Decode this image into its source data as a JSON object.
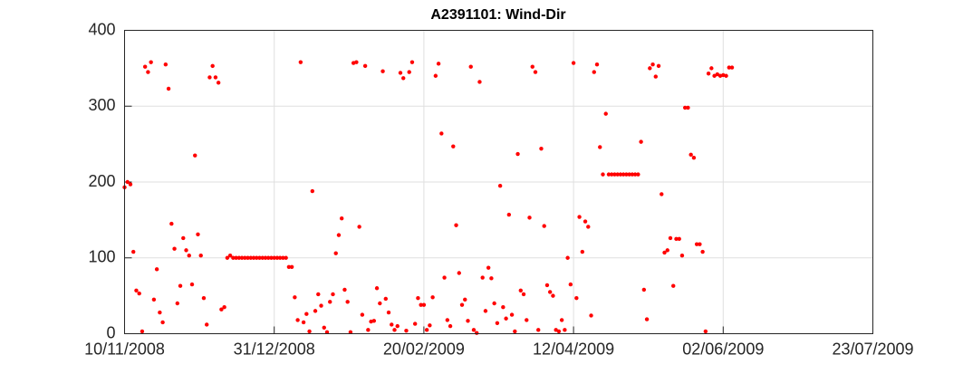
{
  "chart_data": {
    "type": "scatter",
    "title": "A2391101: Wind-Dir",
    "color": "#ff0000",
    "grid": true,
    "xlim": [
      "10/11/2008",
      "23/07/2009"
    ],
    "xticks": [
      "10/11/2008",
      "31/12/2008",
      "20/02/2009",
      "12/04/2009",
      "02/06/2009",
      "23/07/2009"
    ],
    "ylim": [
      0,
      400
    ],
    "yticks": [
      0,
      100,
      200,
      300,
      400
    ],
    "series": [
      {
        "name": "Wind-Dir",
        "color": "#ff0000",
        "x": [
          "10/11/2008",
          "11/11/2008",
          "12/11/2008",
          "13/11/2008",
          "14/11/2008",
          "15/11/2008",
          "16/11/2008",
          "17/11/2008",
          "18/11/2008",
          "19/11/2008",
          "20/11/2008",
          "21/11/2008",
          "22/11/2008",
          "23/11/2008",
          "24/11/2008",
          "25/11/2008",
          "26/11/2008",
          "27/11/2008",
          "28/11/2008",
          "29/11/2008",
          "30/11/2008",
          "01/12/2008",
          "02/12/2008",
          "03/12/2008",
          "04/12/2008",
          "05/12/2008",
          "06/12/2008",
          "07/12/2008",
          "08/12/2008",
          "09/12/2008",
          "10/12/2008",
          "11/12/2008",
          "12/12/2008",
          "13/12/2008",
          "14/12/2008",
          "15/12/2008",
          "16/12/2008",
          "17/12/2008",
          "18/12/2008",
          "19/12/2008",
          "20/12/2008",
          "21/12/2008",
          "22/12/2008",
          "23/12/2008",
          "24/12/2008",
          "25/12/2008",
          "26/12/2008",
          "27/12/2008",
          "28/12/2008",
          "29/12/2008",
          "30/12/2008",
          "31/12/2008",
          "01/01/2009",
          "02/01/2009",
          "03/01/2009",
          "04/01/2009",
          "05/01/2009",
          "06/01/2009",
          "07/01/2009",
          "08/01/2009",
          "09/01/2009",
          "10/01/2009",
          "11/01/2009",
          "12/01/2009",
          "13/01/2009",
          "14/01/2009",
          "15/01/2009",
          "16/01/2009",
          "17/01/2009",
          "18/01/2009",
          "19/01/2009",
          "20/01/2009",
          "21/01/2009",
          "22/01/2009",
          "23/01/2009",
          "24/01/2009",
          "25/01/2009",
          "26/01/2009",
          "27/01/2009",
          "28/01/2009",
          "29/01/2009",
          "30/01/2009",
          "31/01/2009",
          "01/02/2009",
          "02/02/2009",
          "03/02/2009",
          "04/02/2009",
          "05/02/2009",
          "06/02/2009",
          "07/02/2009",
          "08/02/2009",
          "09/02/2009",
          "10/02/2009",
          "11/02/2009",
          "12/02/2009",
          "13/02/2009",
          "14/02/2009",
          "15/02/2009",
          "16/02/2009",
          "17/02/2009",
          "18/02/2009",
          "19/02/2009",
          "20/02/2009",
          "21/02/2009",
          "22/02/2009",
          "23/02/2009",
          "24/02/2009",
          "25/02/2009",
          "26/02/2009",
          "27/02/2009",
          "28/02/2009",
          "01/03/2009",
          "02/03/2009",
          "03/03/2009",
          "04/03/2009",
          "05/03/2009",
          "06/03/2009",
          "07/03/2009",
          "08/03/2009",
          "09/03/2009",
          "10/03/2009",
          "11/03/2009",
          "12/03/2009",
          "13/03/2009",
          "14/03/2009",
          "15/03/2009",
          "16/03/2009",
          "17/03/2009",
          "18/03/2009",
          "19/03/2009",
          "20/03/2009",
          "21/03/2009",
          "22/03/2009",
          "23/03/2009",
          "24/03/2009",
          "25/03/2009",
          "26/03/2009",
          "27/03/2009",
          "28/03/2009",
          "29/03/2009",
          "30/03/2009",
          "31/03/2009",
          "01/04/2009",
          "02/04/2009",
          "03/04/2009",
          "04/04/2009",
          "05/04/2009",
          "06/04/2009",
          "07/04/2009",
          "08/04/2009",
          "09/04/2009",
          "10/04/2009",
          "11/04/2009",
          "12/04/2009",
          "13/04/2009",
          "14/04/2009",
          "15/04/2009",
          "16/04/2009",
          "17/04/2009",
          "18/04/2009",
          "19/04/2009",
          "20/04/2009",
          "21/04/2009",
          "22/04/2009",
          "23/04/2009",
          "24/04/2009",
          "25/04/2009",
          "26/04/2009",
          "27/04/2009",
          "28/04/2009",
          "29/04/2009",
          "30/04/2009",
          "01/05/2009",
          "02/05/2009",
          "03/05/2009",
          "04/05/2009",
          "05/05/2009",
          "06/05/2009",
          "07/05/2009",
          "08/05/2009",
          "09/05/2009",
          "10/05/2009",
          "11/05/2009",
          "12/05/2009",
          "13/05/2009",
          "14/05/2009",
          "15/05/2009",
          "16/05/2009",
          "17/05/2009",
          "18/05/2009",
          "19/05/2009",
          "20/05/2009",
          "21/05/2009",
          "22/05/2009",
          "23/05/2009",
          "24/05/2009",
          "25/05/2009",
          "26/05/2009",
          "27/05/2009",
          "28/05/2009",
          "29/05/2009",
          "30/05/2009",
          "31/05/2009",
          "01/06/2009",
          "02/06/2009",
          "03/06/2009",
          "04/06/2009",
          "05/06/2009"
        ],
        "values": [
          193,
          200,
          197,
          108,
          57,
          53,
          3,
          352,
          345,
          358,
          45,
          85,
          28,
          15,
          355,
          323,
          145,
          112,
          40,
          63,
          126,
          110,
          103,
          65,
          235,
          131,
          103,
          47,
          12,
          338,
          353,
          338,
          331,
          32,
          35,
          100,
          103,
          100,
          100,
          100,
          100,
          100,
          100,
          100,
          100,
          100,
          100,
          100,
          100,
          100,
          100,
          100,
          100,
          100,
          100,
          100,
          88,
          88,
          48,
          18,
          358,
          15,
          26,
          3,
          188,
          30,
          52,
          37,
          8,
          2,
          42,
          52,
          106,
          130,
          152,
          58,
          42,
          2,
          357,
          358,
          141,
          25,
          353,
          5,
          16,
          17,
          60,
          40,
          346,
          46,
          28,
          12,
          5,
          10,
          344,
          337,
          4,
          345,
          358,
          13,
          47,
          38,
          38,
          5,
          11,
          48,
          340,
          356,
          264,
          74,
          18,
          10,
          247,
          143,
          80,
          38,
          45,
          17,
          352,
          5,
          1,
          332,
          74,
          30,
          87,
          73,
          40,
          14,
          195,
          35,
          20,
          157,
          25,
          3,
          237,
          57,
          52,
          18,
          153,
          352,
          345,
          5,
          244,
          142,
          64,
          55,
          50,
          5,
          3,
          18,
          5,
          100,
          65,
          357,
          47,
          154,
          108,
          148,
          141,
          24,
          345,
          355,
          246,
          210,
          290,
          210,
          210,
          210,
          210,
          210,
          210,
          210,
          210,
          210,
          210,
          210,
          253,
          58,
          19,
          350,
          355,
          339,
          353,
          184,
          107,
          110,
          126,
          63,
          125,
          125,
          103,
          298,
          298,
          236,
          232,
          118,
          118,
          108,
          3,
          343,
          350,
          340,
          342,
          340,
          341,
          340,
          351,
          351
        ]
      }
    ]
  }
}
